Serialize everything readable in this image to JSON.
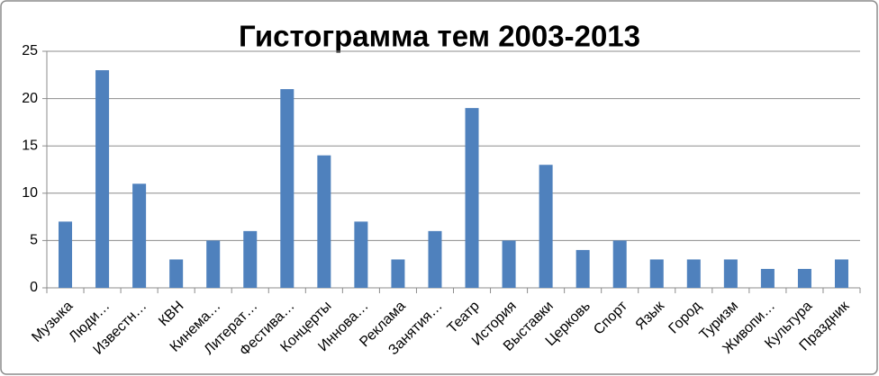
{
  "chart_data": {
    "type": "bar",
    "title": "Гистограмма тем 2003-2013",
    "categories": [
      "Музыка",
      "Люди…",
      "Известн…",
      "КВН",
      "Кинема…",
      "Литерат…",
      "Фестива…",
      "Концерты",
      "Иннова…",
      "Реклама",
      "Занятия…",
      "Театр",
      "История",
      "Выставки",
      "Церковь",
      "Спорт",
      "Язык",
      "Город",
      "Туризм",
      "Живопи…",
      "Культура",
      "Праздник"
    ],
    "values": [
      7,
      23,
      11,
      3,
      5,
      6,
      21,
      14,
      7,
      3,
      6,
      19,
      5,
      13,
      4,
      5,
      3,
      3,
      3,
      2,
      2,
      3
    ],
    "color": "#4f81bd",
    "ylim": [
      0,
      25
    ],
    "yticks": [
      0,
      5,
      10,
      15,
      20,
      25
    ],
    "grid": true
  }
}
